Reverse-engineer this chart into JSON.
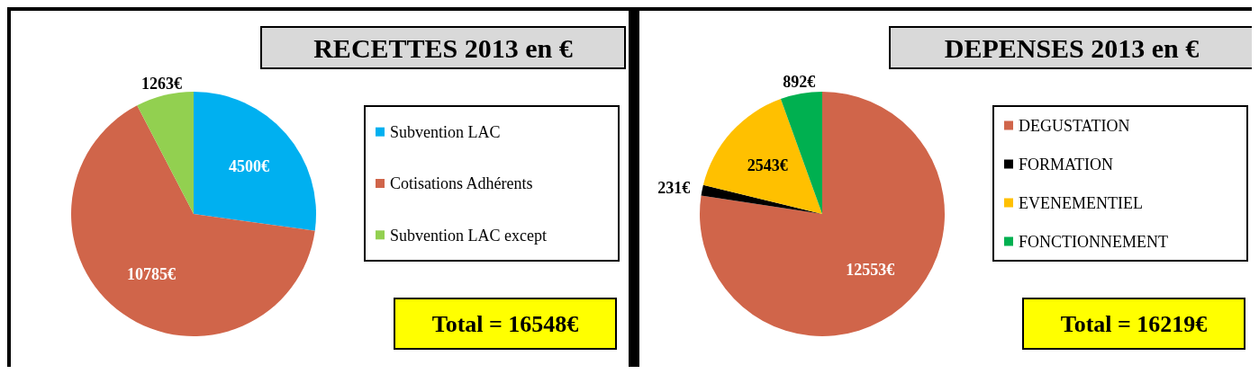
{
  "chart_data": [
    {
      "type": "pie",
      "title": "RECETTES 2013 en €",
      "categories": [
        "Subvention LAC",
        "Cotisations Adhérents",
        "Subvention LAC except"
      ],
      "values": [
        4500,
        10785,
        1263
      ],
      "colors": [
        "#00b0f0",
        "#d0654a",
        "#92d050"
      ],
      "value_labels": [
        "4500€",
        "10785€",
        "1263€"
      ],
      "legend": "right",
      "annotations": [
        "Total = 16548€"
      ]
    },
    {
      "type": "pie",
      "title": "DEPENSES 2013 en €",
      "categories": [
        "DEGUSTATION",
        "FORMATION",
        "EVENEMENTIEL",
        "FONCTIONNEMENT"
      ],
      "values": [
        12553,
        231,
        2543,
        892
      ],
      "colors": [
        "#d0654a",
        "#000000",
        "#ffc000",
        "#00b050"
      ],
      "value_labels": [
        "12553€",
        "231€",
        "2543€",
        "892€"
      ],
      "legend": "right",
      "annotations": [
        "Total = 16219€"
      ]
    }
  ]
}
